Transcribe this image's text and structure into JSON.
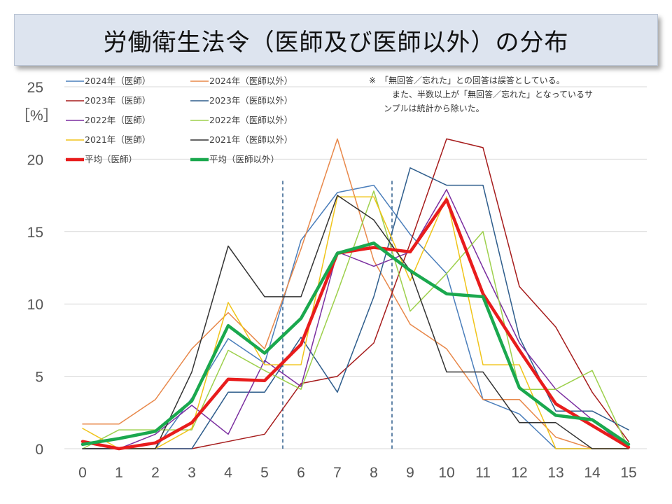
{
  "title": "労働衛生法令（医師及び医師以外）の分布",
  "note": [
    "※　「無回答／忘れた」との回答は誤答としている。",
    "　また、半数以上が「無回答／忘れた」となっているサ",
    "ンプルは統計から除いた。"
  ],
  "chart_data": {
    "type": "line",
    "title": "労働衛生法令（医師及び医師以外）の分布",
    "ylabel": "［%］",
    "xlabel": "",
    "x": [
      0,
      1,
      2,
      3,
      4,
      5,
      6,
      7,
      8,
      9,
      10,
      11,
      12,
      13,
      14,
      15
    ],
    "ylim": [
      0,
      25
    ],
    "yticks": [
      0,
      5,
      10,
      15,
      20,
      25
    ],
    "xlim": [
      0,
      15
    ],
    "grid": "horizontal",
    "vlines": [
      5.5,
      8.5
    ],
    "series": [
      {
        "name": "2024年（医師）",
        "color": "#4a7ebb",
        "width": 1.5,
        "values": [
          0,
          0,
          0,
          3.5,
          7.6,
          5.9,
          14.4,
          17.7,
          18.2,
          14.8,
          12.1,
          3.4,
          2.4,
          0,
          0,
          0
        ]
      },
      {
        "name": "2024年（医師以外）",
        "color": "#e8884a",
        "width": 1.5,
        "values": [
          1.7,
          1.7,
          3.4,
          6.9,
          9.4,
          6.9,
          13.8,
          21.4,
          13.0,
          8.6,
          6.9,
          3.4,
          3.4,
          0.8,
          0,
          0
        ]
      },
      {
        "name": "2023年（医師）",
        "color": "#a61c1c",
        "width": 1.5,
        "values": [
          0,
          0,
          0,
          0,
          0.5,
          1.0,
          4.5,
          5.0,
          7.3,
          14.2,
          21.4,
          20.8,
          11.2,
          8.4,
          3.9,
          0.5
        ]
      },
      {
        "name": "2023年（医師以外）",
        "color": "#2e5d8c",
        "width": 1.5,
        "values": [
          0,
          0,
          0,
          0,
          3.9,
          3.9,
          7.7,
          3.9,
          10.5,
          19.4,
          18.2,
          18.2,
          7.7,
          2.6,
          2.6,
          1.3
        ]
      },
      {
        "name": "2022年（医師）",
        "color": "#7b2fa0",
        "width": 1.5,
        "values": [
          0.5,
          0,
          1.0,
          3.0,
          1.0,
          6.1,
          4.3,
          13.6,
          12.6,
          13.6,
          17.9,
          12.5,
          7.3,
          4.1,
          2.0,
          0
        ]
      },
      {
        "name": "2022年（医師以外）",
        "color": "#9dd04c",
        "width": 1.5,
        "values": [
          0,
          1.3,
          1.3,
          1.3,
          6.8,
          5.4,
          4.1,
          10.8,
          17.8,
          9.5,
          12.1,
          15.0,
          4.1,
          4.1,
          5.4,
          0
        ]
      },
      {
        "name": "2021年（医師）",
        "color": "#f0c419",
        "width": 1.5,
        "values": [
          1.4,
          0,
          0,
          1.4,
          10.1,
          5.8,
          5.8,
          17.4,
          17.4,
          11.6,
          17.4,
          5.8,
          5.8,
          0,
          0,
          0
        ]
      },
      {
        "name": "2021年（医師以外）",
        "color": "#333333",
        "width": 1.5,
        "values": [
          0,
          0,
          0,
          5.3,
          14.0,
          10.5,
          10.5,
          17.5,
          15.8,
          12.3,
          5.3,
          5.3,
          1.8,
          1.8,
          0,
          0
        ]
      },
      {
        "name": "平均（医師）",
        "color": "#e81c1c",
        "width": 4.5,
        "values": [
          0.5,
          0,
          0.4,
          1.8,
          4.8,
          4.7,
          7.2,
          13.5,
          13.9,
          13.6,
          17.2,
          10.7,
          6.8,
          3.1,
          1.6,
          0.1
        ]
      },
      {
        "name": "平均（医師以外）",
        "color": "#1aa84e",
        "width": 4.5,
        "values": [
          0.3,
          0.7,
          1.2,
          3.3,
          8.5,
          6.6,
          9.0,
          13.5,
          14.2,
          12.3,
          10.7,
          10.5,
          4.2,
          2.3,
          2.0,
          0.3
        ]
      }
    ]
  }
}
